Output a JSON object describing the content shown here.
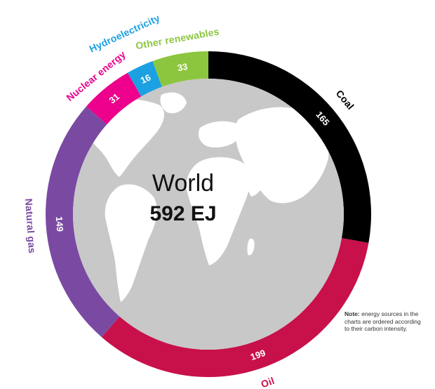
{
  "chart_data": {
    "type": "pie",
    "title": "",
    "center_title": "World",
    "center_value": "592 EJ",
    "categories": [
      "Coal",
      "Oil",
      "Natural gas",
      "Nuclear energy",
      "Hydroelectricity",
      "Other renewables"
    ],
    "values": [
      165,
      199,
      149,
      31,
      16,
      33
    ],
    "colors": [
      "#000000",
      "#c8104a",
      "#7a4aa3",
      "#ec008c",
      "#1ba1e2",
      "#8cc63f"
    ],
    "center_fill": "#c8c8c8",
    "legend": "none"
  },
  "note": {
    "label": "Note:",
    "text": "energy sources in the charts are ordered according to their carbon intensity."
  }
}
